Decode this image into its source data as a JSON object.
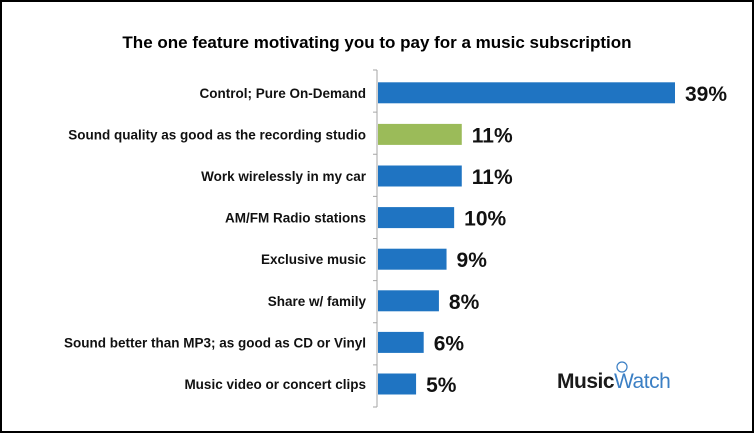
{
  "chart_data": {
    "type": "bar",
    "orientation": "horizontal",
    "title": "The one feature motivating you to pay for a music subscription",
    "categories": [
      "Control; Pure On-Demand",
      "Sound quality as good as the recording studio",
      "Work wirelessly in my car",
      "AM/FM Radio stations",
      "Exclusive music",
      "Share w/ family",
      "Sound better than MP3; as good as CD or Vinyl",
      "Music video or concert clips"
    ],
    "values": [
      39,
      11,
      11,
      10,
      9,
      8,
      6,
      5
    ],
    "value_labels": [
      "39%",
      "11%",
      "11%",
      "10%",
      "9%",
      "8%",
      "6%",
      "5%"
    ],
    "unit": "%",
    "bar_colors": [
      "#1f74c2",
      "#9bbb59",
      "#1f74c2",
      "#1f74c2",
      "#1f74c2",
      "#1f74c2",
      "#1f74c2",
      "#1f74c2"
    ],
    "xlim": [
      0,
      39
    ],
    "grid": false
  },
  "branding": {
    "logo_part1": "Music",
    "logo_part2": "Watch"
  },
  "colors": {
    "primary_bar": "#1f74c2",
    "highlight_bar": "#9bbb59",
    "axis": "#a6a6a6"
  }
}
